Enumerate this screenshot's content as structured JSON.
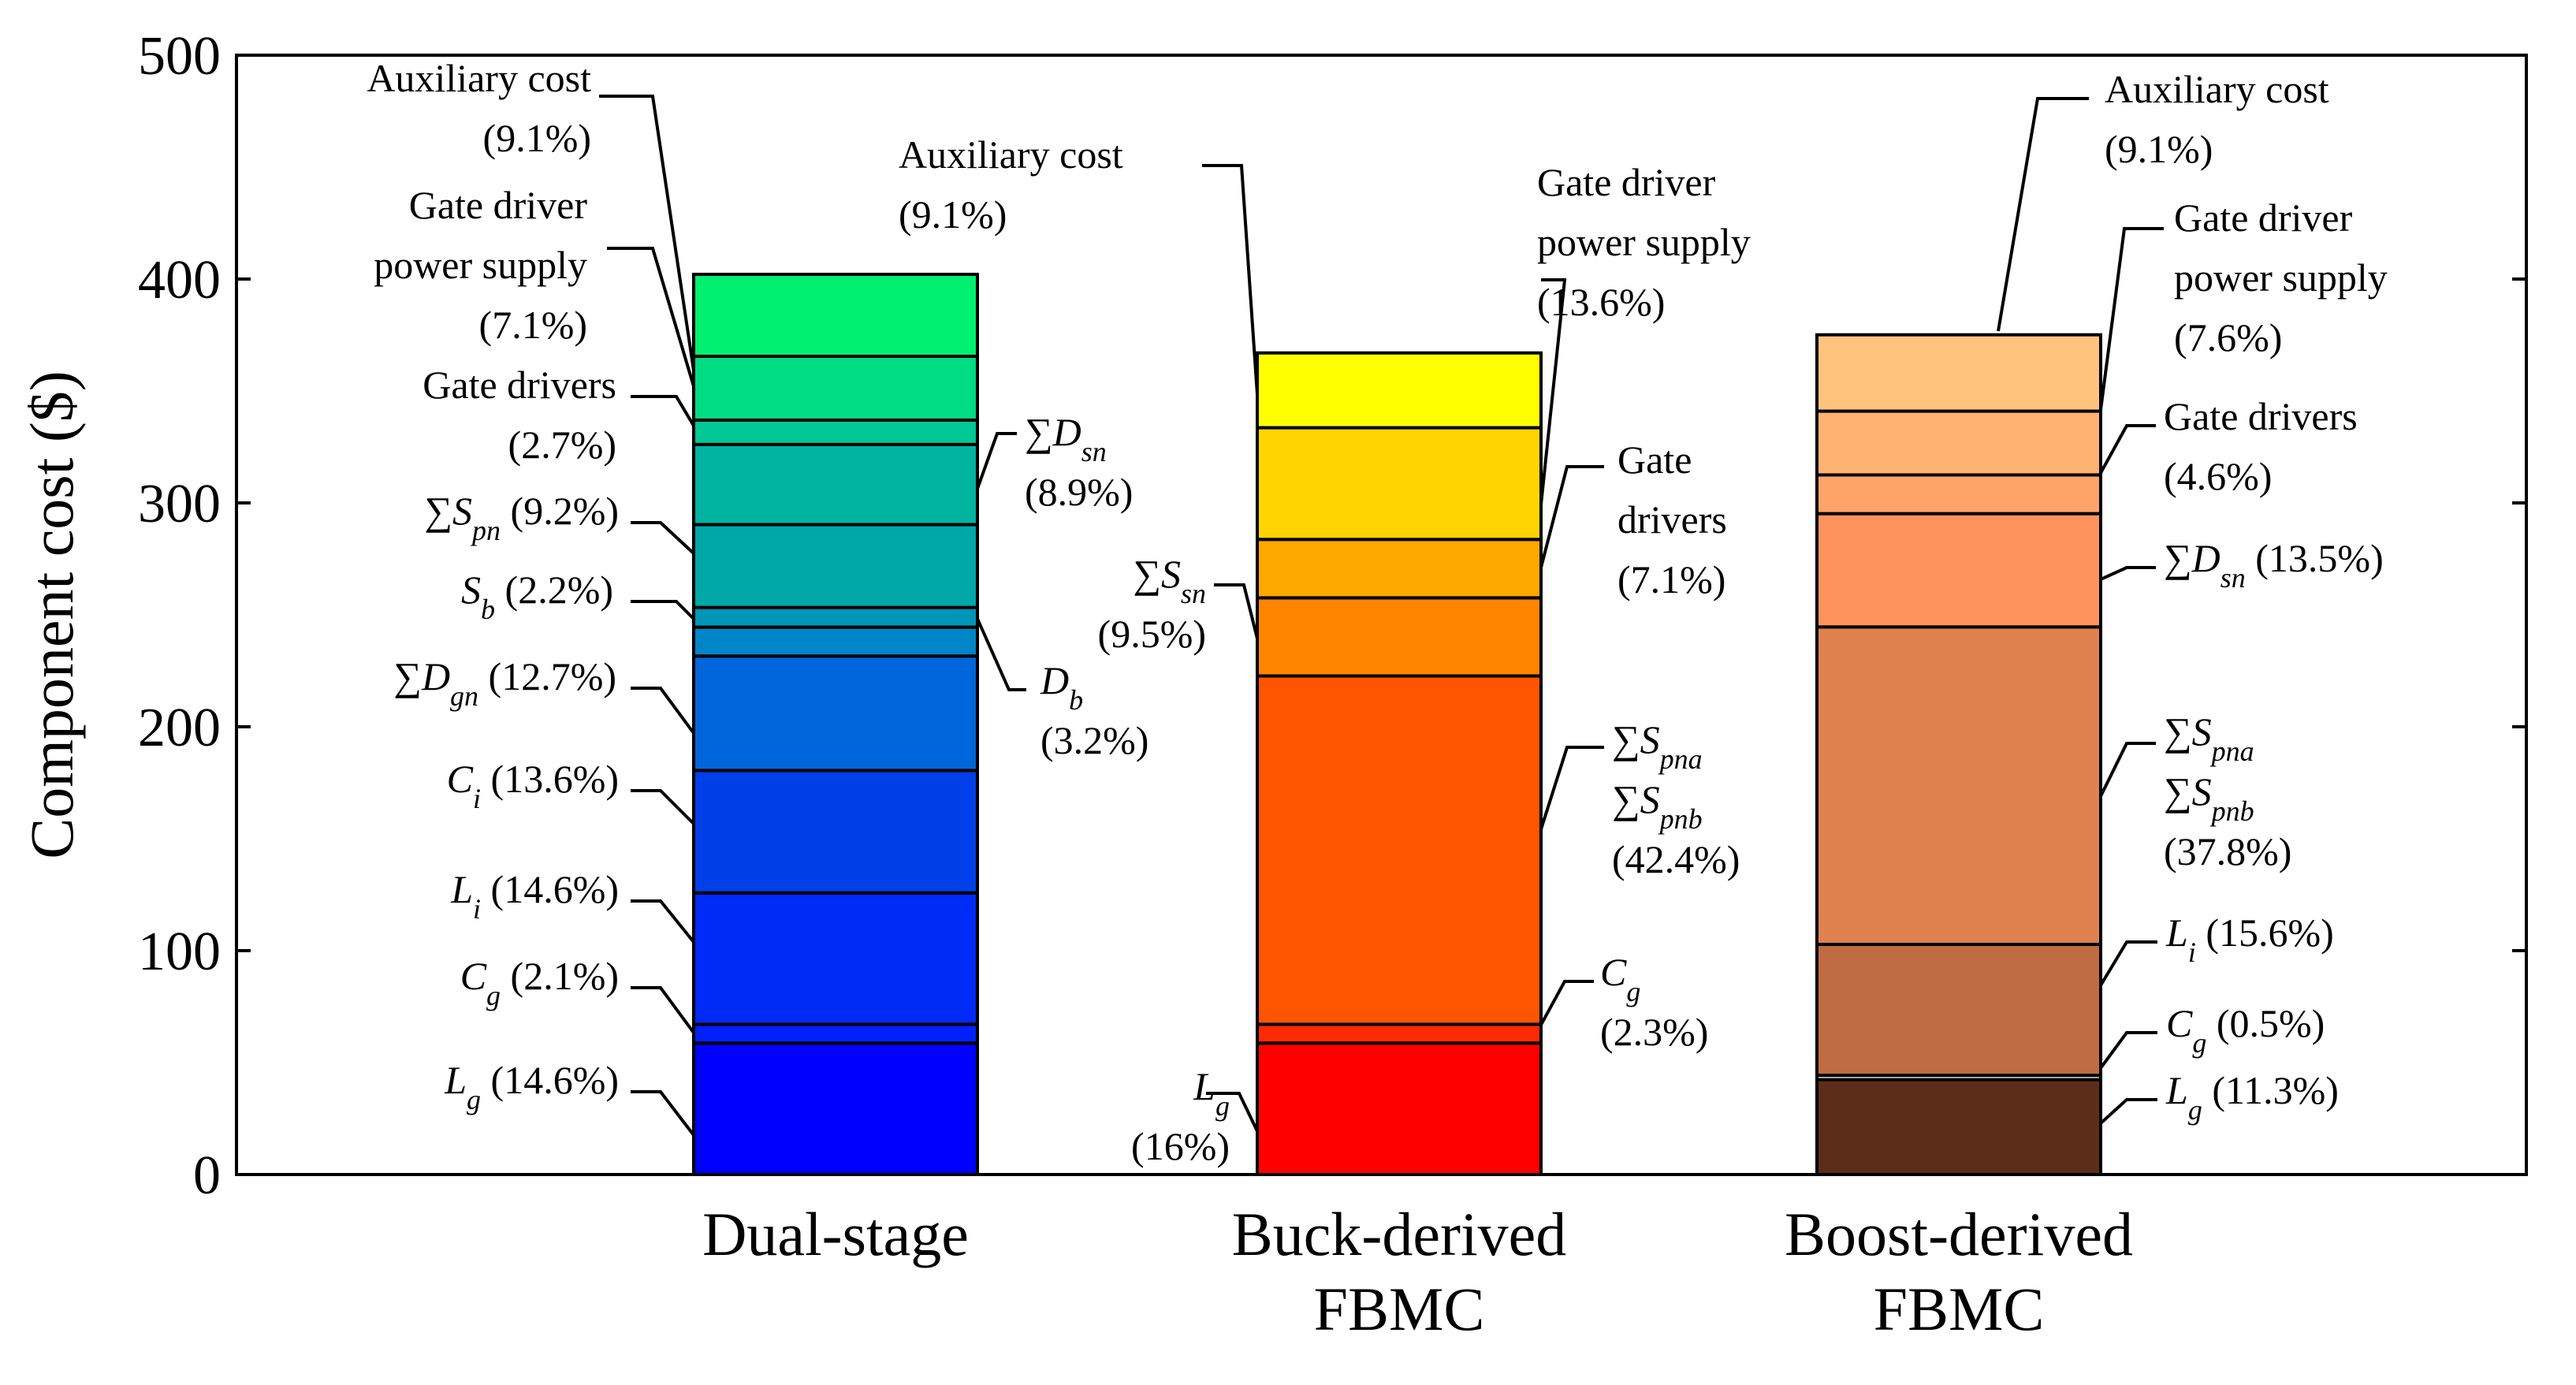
{
  "chart_data": {
    "type": "bar",
    "stacked": true,
    "ylabel": "Component cost ($)",
    "ylim": [
      0,
      500
    ],
    "yticks": [
      0,
      100,
      200,
      300,
      400,
      500
    ],
    "grid": false,
    "bars": [
      {
        "category_lines": [
          "Dual-stage"
        ],
        "total": 402,
        "segments": [
          {
            "component": "Lg",
            "percent": "14.6%",
            "value": 58.7,
            "color": "#0000ff"
          },
          {
            "component": "Cg",
            "percent": "2.1%",
            "value": 8.4,
            "color": "#0020ff"
          },
          {
            "component": "Li",
            "percent": "14.6%",
            "value": 58.7,
            "color": "#002af5"
          },
          {
            "component": "Ci",
            "percent": "13.6%",
            "value": 54.7,
            "color": "#0040e8"
          },
          {
            "component": "ΣDgn",
            "percent": "12.7%",
            "value": 51.1,
            "color": "#0066dc"
          },
          {
            "component": "Db",
            "percent": "3.2%",
            "value": 12.9,
            "color": "#0086c8"
          },
          {
            "component": "Sb",
            "percent": "2.2%",
            "value": 8.8,
            "color": "#0096b8"
          },
          {
            "component": "ΣSpn",
            "percent": "9.2%",
            "value": 37.0,
            "color": "#00a8a8"
          },
          {
            "component": "ΣDsn",
            "percent": "8.9%",
            "value": 35.8,
            "color": "#00b4a0"
          },
          {
            "component": "Gate drivers",
            "percent": "2.7%",
            "value": 10.9,
            "color": "#00c896"
          },
          {
            "component": "Gate driver power supply",
            "percent": "7.1%",
            "value": 28.5,
            "color": "#00dc84"
          },
          {
            "component": "Auxiliary cost",
            "percent": "9.1%",
            "value": 36.6,
            "color": "#00f070"
          }
        ]
      },
      {
        "category_lines": [
          "Buck-derived",
          "FBMC"
        ],
        "total": 367,
        "segments": [
          {
            "component": "Lg",
            "percent": "16%",
            "value": 58.7,
            "color": "#ff0000"
          },
          {
            "component": "Cg",
            "percent": "2.3%",
            "value": 8.4,
            "color": "#ff2a00"
          },
          {
            "component": "ΣSpna ΣSpnb",
            "percent": "42.4%",
            "value": 155.6,
            "color": "#ff5500"
          },
          {
            "component": "ΣSsn",
            "percent": "9.5%",
            "value": 34.9,
            "color": "#ff8400"
          },
          {
            "component": "Gate drivers",
            "percent": "7.1%",
            "value": 26.1,
            "color": "#ffa800"
          },
          {
            "component": "Gate driver power supply",
            "percent": "13.6%",
            "value": 49.9,
            "color": "#ffd400"
          },
          {
            "component": "Auxiliary cost",
            "percent": "9.1%",
            "value": 33.4,
            "color": "#ffff00"
          }
        ]
      },
      {
        "category_lines": [
          "Boost-derived",
          "FBMC"
        ],
        "total": 375,
        "segments": [
          {
            "component": "Lg",
            "percent": "11.3%",
            "value": 42.4,
            "color": "#5c2e1a"
          },
          {
            "component": "Cg",
            "percent": "0.5%",
            "value": 1.9,
            "color": "#ffffff"
          },
          {
            "component": "Li",
            "percent": "15.6%",
            "value": 58.5,
            "color": "#c06c42"
          },
          {
            "component": "ΣSpna ΣSpnb",
            "percent": "37.8%",
            "value": 141.8,
            "color": "#e08250"
          },
          {
            "component": "ΣDsn",
            "percent": "13.5%",
            "value": 50.6,
            "color": "#ff935c"
          },
          {
            "component": "Gate drivers",
            "percent": "4.6%",
            "value": 17.3,
            "color": "#ffa468"
          },
          {
            "component": "Gate driver power supply",
            "percent": "7.6%",
            "value": 28.5,
            "color": "#ffb272"
          },
          {
            "component": "Auxiliary cost",
            "percent": "9.1%",
            "value": 34.1,
            "color": "#ffc37e"
          }
        ]
      }
    ],
    "annotations": [
      {
        "bar": 0,
        "lines": [
          [
            {
              "t": "Auxiliary  cost"
            }
          ],
          [
            {
              "t": "(9.1%)"
            }
          ]
        ]
      },
      {
        "bar": 0,
        "lines": [
          [
            {
              "t": "Gate driver"
            }
          ],
          [
            {
              "t": "power supply"
            }
          ],
          [
            {
              "t": "(7.1%)"
            }
          ]
        ]
      },
      {
        "bar": 0,
        "lines": [
          [
            {
              "t": "Gate drivers"
            }
          ],
          [
            {
              "t": "(2.7%)"
            }
          ]
        ]
      },
      {
        "bar": 0,
        "lines": [
          [
            {
              "t": "∑"
            },
            {
              "t": "S",
              "i": true
            },
            {
              "t": "pn",
              "i": true,
              "sub": true
            },
            {
              "t": " (9.2%)"
            }
          ]
        ]
      },
      {
        "bar": 0,
        "lines": [
          [
            {
              "t": "S",
              "i": true
            },
            {
              "t": "b",
              "i": true,
              "sub": true
            },
            {
              "t": " (2.2%)"
            }
          ]
        ]
      },
      {
        "bar": 0,
        "lines": [
          [
            {
              "t": "∑"
            },
            {
              "t": "D",
              "i": true
            },
            {
              "t": "gn",
              "i": true,
              "sub": true
            },
            {
              "t": " (12.7%)"
            }
          ]
        ]
      },
      {
        "bar": 0,
        "lines": [
          [
            {
              "t": "C",
              "i": true
            },
            {
              "t": "i",
              "i": true,
              "sub": true
            },
            {
              "t": " (13.6%)"
            }
          ]
        ]
      },
      {
        "bar": 0,
        "lines": [
          [
            {
              "t": "L",
              "i": true
            },
            {
              "t": "i",
              "i": true,
              "sub": true
            },
            {
              "t": " (14.6%)"
            }
          ]
        ]
      },
      {
        "bar": 0,
        "lines": [
          [
            {
              "t": "C",
              "i": true
            },
            {
              "t": "g",
              "i": true,
              "sub": true
            },
            {
              "t": " (2.1%)"
            }
          ]
        ]
      },
      {
        "bar": 0,
        "lines": [
          [
            {
              "t": "L",
              "i": true
            },
            {
              "t": "g",
              "i": true,
              "sub": true
            },
            {
              "t": " (14.6%)"
            }
          ]
        ]
      },
      {
        "bar": 0,
        "lines": [
          [
            {
              "t": "∑"
            },
            {
              "t": "D",
              "i": true
            },
            {
              "t": "sn",
              "i": true,
              "sub": true
            }
          ],
          [
            {
              "t": "(8.9%)"
            }
          ]
        ]
      },
      {
        "bar": 0,
        "lines": [
          [
            {
              "t": "D",
              "i": true
            },
            {
              "t": "b",
              "i": true,
              "sub": true
            }
          ],
          [
            {
              "t": "(3.2%)"
            }
          ]
        ]
      },
      {
        "bar": 1,
        "lines": [
          [
            {
              "t": "Auxiliary  cost"
            }
          ],
          [
            {
              "t": "(9.1%)"
            }
          ]
        ]
      },
      {
        "bar": 1,
        "lines": [
          [
            {
              "t": "∑"
            },
            {
              "t": "S",
              "i": true
            },
            {
              "t": "sn",
              "i": true,
              "sub": true
            }
          ],
          [
            {
              "t": "(9.5%)"
            }
          ]
        ]
      },
      {
        "bar": 1,
        "lines": [
          [
            {
              "t": "L",
              "i": true
            },
            {
              "t": "g",
              "i": true,
              "sub": true
            }
          ],
          [
            {
              "t": "(16%)"
            }
          ]
        ]
      },
      {
        "bar": 1,
        "lines": [
          [
            {
              "t": "Gate driver"
            }
          ],
          [
            {
              "t": "power supply"
            }
          ],
          [
            {
              "t": "(13.6%)"
            }
          ]
        ]
      },
      {
        "bar": 1,
        "lines": [
          [
            {
              "t": "Gate"
            }
          ],
          [
            {
              "t": "drivers"
            }
          ],
          [
            {
              "t": "(7.1%)"
            }
          ]
        ]
      },
      {
        "bar": 1,
        "lines": [
          [
            {
              "t": "∑"
            },
            {
              "t": "S",
              "i": true
            },
            {
              "t": "pna",
              "i": true,
              "sub": true
            }
          ],
          [
            {
              "t": "∑"
            },
            {
              "t": "S",
              "i": true
            },
            {
              "t": "pnb",
              "i": true,
              "sub": true
            }
          ],
          [
            {
              "t": "(42.4%)"
            }
          ]
        ]
      },
      {
        "bar": 1,
        "lines": [
          [
            {
              "t": "C",
              "i": true
            },
            {
              "t": "g",
              "i": true,
              "sub": true
            }
          ],
          [
            {
              "t": "(2.3%)"
            }
          ]
        ]
      },
      {
        "bar": 2,
        "lines": [
          [
            {
              "t": "Auxiliary  cost"
            }
          ],
          [
            {
              "t": "(9.1%)"
            }
          ]
        ]
      },
      {
        "bar": 2,
        "lines": [
          [
            {
              "t": "Gate driver"
            }
          ],
          [
            {
              "t": "power supply"
            }
          ],
          [
            {
              "t": "(7.6%)"
            }
          ]
        ]
      },
      {
        "bar": 2,
        "lines": [
          [
            {
              "t": "Gate drivers"
            }
          ],
          [
            {
              "t": "(4.6%)"
            }
          ]
        ]
      },
      {
        "bar": 2,
        "lines": [
          [
            {
              "t": "∑"
            },
            {
              "t": "D",
              "i": true
            },
            {
              "t": "sn",
              "i": true,
              "sub": true
            },
            {
              "t": " (13.5%)"
            }
          ]
        ]
      },
      {
        "bar": 2,
        "lines": [
          [
            {
              "t": "∑"
            },
            {
              "t": "S",
              "i": true
            },
            {
              "t": "pna",
              "i": true,
              "sub": true
            }
          ],
          [
            {
              "t": "∑"
            },
            {
              "t": "S",
              "i": true
            },
            {
              "t": "pnb",
              "i": true,
              "sub": true
            }
          ],
          [
            {
              "t": "(37.8%)"
            }
          ]
        ]
      },
      {
        "bar": 2,
        "lines": [
          [
            {
              "t": "L",
              "i": true
            },
            {
              "t": "i",
              "i": true,
              "sub": true
            },
            {
              "t": " (15.6%)"
            }
          ]
        ]
      },
      {
        "bar": 2,
        "lines": [
          [
            {
              "t": "C",
              "i": true
            },
            {
              "t": "g",
              "i": true,
              "sub": true
            },
            {
              "t": " (0.5%)"
            }
          ]
        ]
      },
      {
        "bar": 2,
        "lines": [
          [
            {
              "t": "L",
              "i": true
            },
            {
              "t": "g",
              "i": true,
              "sub": true
            },
            {
              "t": " (11.3%)"
            }
          ]
        ]
      }
    ]
  }
}
